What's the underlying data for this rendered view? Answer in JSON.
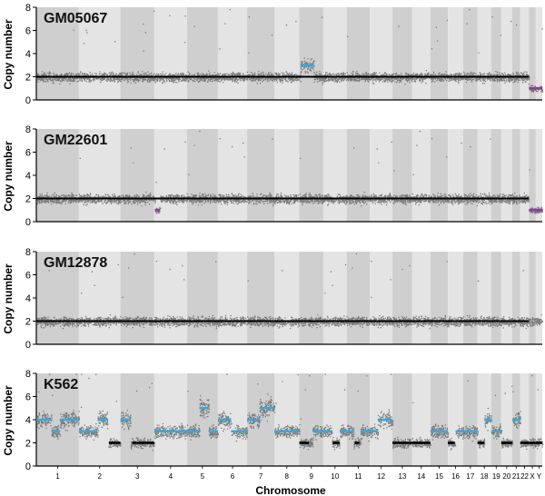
{
  "chart_data": {
    "type": "scatter",
    "xlabel": "Chromosome",
    "ylabel": "Copy number",
    "ylim": [
      0,
      8
    ],
    "yticks": [
      0,
      2,
      4,
      6,
      8
    ],
    "chromosomes": [
      "1",
      "2",
      "3",
      "4",
      "5",
      "6",
      "7",
      "8",
      "9",
      "10",
      "11",
      "12",
      "13",
      "14",
      "15",
      "16",
      "17",
      "18",
      "19",
      "20",
      "21",
      "22",
      "X",
      "Y"
    ],
    "colors": {
      "points": "#6b6b6b",
      "baseline": "#000000",
      "gain": "#3aa7d9",
      "loss": "#8e3a9e",
      "band_dark": "#cfcfcf",
      "band_light": "#e4e4e4"
    },
    "panels": [
      {
        "name": "GM05067",
        "baseline": 2,
        "segments": [
          {
            "chrom": "9",
            "from": 0.05,
            "to": 0.6,
            "value": 3,
            "kind": "gain"
          },
          {
            "chrom": "X",
            "from": 0,
            "to": 1,
            "value": 1,
            "kind": "loss"
          },
          {
            "chrom": "Y",
            "from": 0,
            "to": 1,
            "value": 1,
            "kind": "loss"
          }
        ]
      },
      {
        "name": "GM22601",
        "baseline": 2,
        "segments": [
          {
            "chrom": "4",
            "from": 0.02,
            "to": 0.18,
            "value": 1,
            "kind": "loss"
          },
          {
            "chrom": "X",
            "from": 0,
            "to": 1,
            "value": 1,
            "kind": "loss"
          },
          {
            "chrom": "Y",
            "from": 0,
            "to": 1,
            "value": 1,
            "kind": "loss"
          }
        ]
      },
      {
        "name": "GM12878",
        "baseline": 2,
        "segments": []
      },
      {
        "name": "K562",
        "baseline": null,
        "segments": [
          {
            "chrom": "1",
            "from": 0,
            "to": 0.35,
            "value": 4,
            "kind": "gain"
          },
          {
            "chrom": "1",
            "from": 0.35,
            "to": 0.55,
            "value": 3,
            "kind": "gain"
          },
          {
            "chrom": "1",
            "from": 0.55,
            "to": 1,
            "value": 4,
            "kind": "gain"
          },
          {
            "chrom": "2",
            "from": 0,
            "to": 0.45,
            "value": 3,
            "kind": "gain"
          },
          {
            "chrom": "2",
            "from": 0.45,
            "to": 0.7,
            "value": 4,
            "kind": "gain"
          },
          {
            "chrom": "2",
            "from": 0.72,
            "to": 1,
            "value": 2,
            "kind": "neutral"
          },
          {
            "chrom": "3",
            "from": 0,
            "to": 0.3,
            "value": 4,
            "kind": "gain"
          },
          {
            "chrom": "3",
            "from": 0.35,
            "to": 1,
            "value": 2,
            "kind": "neutral"
          },
          {
            "chrom": "4",
            "from": 0,
            "to": 1,
            "value": 3,
            "kind": "gain"
          },
          {
            "chrom": "5",
            "from": 0,
            "to": 0.4,
            "value": 3,
            "kind": "gain"
          },
          {
            "chrom": "5",
            "from": 0.4,
            "to": 0.7,
            "value": 5,
            "kind": "gain"
          },
          {
            "chrom": "5",
            "from": 0.7,
            "to": 1,
            "value": 3,
            "kind": "gain"
          },
          {
            "chrom": "6",
            "from": 0,
            "to": 0.45,
            "value": 4,
            "kind": "gain"
          },
          {
            "chrom": "6",
            "from": 0.45,
            "to": 1,
            "value": 3,
            "kind": "gain"
          },
          {
            "chrom": "7",
            "from": 0,
            "to": 0.45,
            "value": 4,
            "kind": "gain"
          },
          {
            "chrom": "7",
            "from": 0.45,
            "to": 1,
            "value": 5,
            "kind": "gain"
          },
          {
            "chrom": "8",
            "from": 0,
            "to": 1,
            "value": 3,
            "kind": "gain"
          },
          {
            "chrom": "9",
            "from": 0,
            "to": 0.4,
            "value": 2,
            "kind": "neutral"
          },
          {
            "chrom": "9",
            "from": 0.55,
            "to": 1,
            "value": 3,
            "kind": "gain"
          },
          {
            "chrom": "10",
            "from": 0,
            "to": 0.35,
            "value": 3,
            "kind": "gain"
          },
          {
            "chrom": "10",
            "from": 0.4,
            "to": 0.7,
            "value": 2,
            "kind": "neutral"
          },
          {
            "chrom": "10",
            "from": 0.7,
            "to": 1,
            "value": 3,
            "kind": "gain"
          },
          {
            "chrom": "11",
            "from": 0,
            "to": 0.3,
            "value": 3,
            "kind": "gain"
          },
          {
            "chrom": "11",
            "from": 0.35,
            "to": 0.55,
            "value": 2,
            "kind": "neutral"
          },
          {
            "chrom": "11",
            "from": 0.6,
            "to": 1,
            "value": 3,
            "kind": "gain"
          },
          {
            "chrom": "12",
            "from": 0,
            "to": 0.35,
            "value": 3,
            "kind": "gain"
          },
          {
            "chrom": "12",
            "from": 0.35,
            "to": 1,
            "value": 4,
            "kind": "gain"
          },
          {
            "chrom": "13",
            "from": 0,
            "to": 1,
            "value": 2,
            "kind": "neutral"
          },
          {
            "chrom": "14",
            "from": 0,
            "to": 1,
            "value": 2,
            "kind": "neutral"
          },
          {
            "chrom": "15",
            "from": 0,
            "to": 1,
            "value": 3,
            "kind": "gain"
          },
          {
            "chrom": "16",
            "from": 0,
            "to": 0.45,
            "value": 2,
            "kind": "neutral"
          },
          {
            "chrom": "16",
            "from": 0.5,
            "to": 1,
            "value": 3,
            "kind": "gain"
          },
          {
            "chrom": "17",
            "from": 0,
            "to": 1,
            "value": 3,
            "kind": "gain"
          },
          {
            "chrom": "18",
            "from": 0,
            "to": 0.5,
            "value": 2,
            "kind": "neutral"
          },
          {
            "chrom": "18",
            "from": 0.5,
            "to": 1,
            "value": 4,
            "kind": "gain"
          },
          {
            "chrom": "19",
            "from": 0,
            "to": 1,
            "value": 3,
            "kind": "gain"
          },
          {
            "chrom": "20",
            "from": 0,
            "to": 1,
            "value": 2,
            "kind": "neutral"
          },
          {
            "chrom": "21",
            "from": 0,
            "to": 1,
            "value": 4,
            "kind": "gain"
          },
          {
            "chrom": "22",
            "from": 0,
            "to": 1,
            "value": 2,
            "kind": "neutral"
          },
          {
            "chrom": "X",
            "from": 0,
            "to": 1,
            "value": 2,
            "kind": "neutral"
          },
          {
            "chrom": "Y",
            "from": 0,
            "to": 1,
            "value": 2,
            "kind": "neutral"
          }
        ]
      }
    ]
  }
}
